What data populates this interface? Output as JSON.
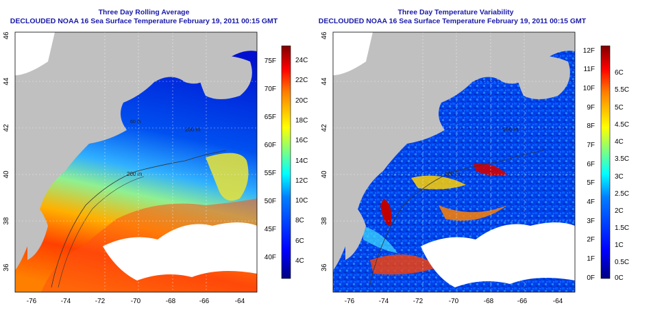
{
  "panels": [
    {
      "id": "average",
      "title_line1": "Three Day Rolling Average",
      "title_line2": "DECLOUDED NOAA 16 Sea Surface Temperature February 19, 2011 00:15 GMT",
      "colorbar_left_labels": [
        "75F",
        "70F",
        "65F",
        "60F",
        "55F",
        "50F",
        "45F",
        "40F"
      ],
      "colorbar_right_labels": [
        "24C",
        "22C",
        "20C",
        "18C",
        "16C",
        "14C",
        "12C",
        "10C",
        "8C",
        "6C",
        "4C"
      ]
    },
    {
      "id": "variability",
      "title_line1": "Three Day Temperature Variability",
      "title_line2": "DECLOUDED NOAA 16 Sea Surface Temperature February 19, 2011 00:15 GMT",
      "colorbar_left_labels": [
        "12F",
        "11F",
        "10F",
        "9F",
        "8F",
        "7F",
        "6F",
        "5F",
        "4F",
        "3F",
        "2F",
        "1F",
        "0F"
      ],
      "colorbar_right_labels": [
        "6C",
        "5.5C",
        "5C",
        "4.5C",
        "4C",
        "3.5C",
        "3C",
        "2.5C",
        "2C",
        "1.5C",
        "1C",
        "0.5C",
        "0C"
      ]
    }
  ],
  "axes": {
    "lon_ticks": [
      "-76",
      "-74",
      "-72",
      "-70",
      "-68",
      "-66",
      "-64"
    ],
    "lat_ticks": [
      "46",
      "44",
      "42",
      "40",
      "38",
      "36"
    ]
  },
  "contour_labels": [
    "200 m",
    "200 m",
    "200 m",
    "200 m",
    "60 m"
  ],
  "colors": {
    "land": "#c0c0c0",
    "cloud": "#ffffff",
    "title": "#1a1aa8",
    "colorbar": [
      "#00007f",
      "#0000ff",
      "#007fff",
      "#00ffff",
      "#7fff7f",
      "#ffff00",
      "#ff7f00",
      "#ff0000",
      "#7f0000"
    ]
  }
}
